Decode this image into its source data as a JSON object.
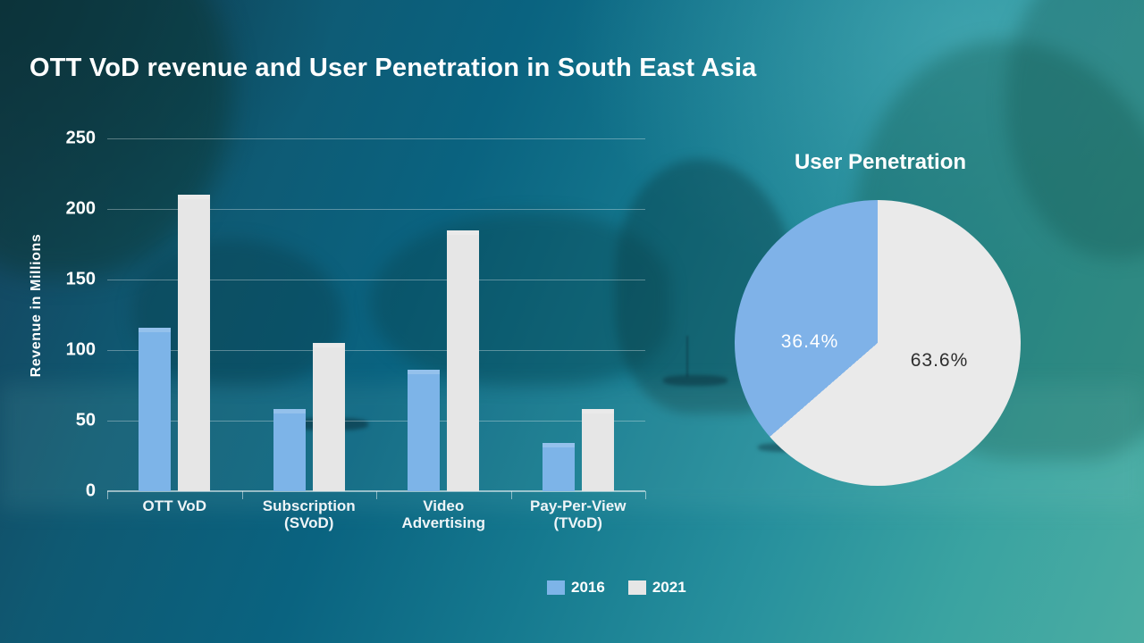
{
  "title": "OTT VoD revenue and User Penetration in South East Asia",
  "colors": {
    "text": "#ffffff",
    "series_2016": "#7db4e8",
    "series_2021": "#e6e6e6",
    "pie_blue": "#7fb2e8",
    "pie_gray": "#eaeaea",
    "pie_dark_label": "#2e2e2e",
    "background_top_left": "#16405a",
    "background_bottom_right": "#4bada2"
  },
  "legend": {
    "items": [
      {
        "label": "2016",
        "color": "#7db4e8"
      },
      {
        "label": "2021",
        "color": "#e6e6e6"
      }
    ]
  },
  "chart_data": [
    {
      "type": "bar",
      "title": "",
      "xlabel": "",
      "ylabel": "Revenue in Millions",
      "ylim": [
        0,
        250
      ],
      "yticks": [
        250,
        200,
        150,
        100,
        50,
        0
      ],
      "grid": true,
      "legend_position": "bottom",
      "categories": [
        "OTT VoD",
        "Subscription (SVoD)",
        "Video Advertising",
        "Pay-Per-View (TVoD)"
      ],
      "category_lines": [
        [
          "OTT VoD"
        ],
        [
          "Subscription",
          "(SVoD)"
        ],
        [
          "Video",
          "Advertising"
        ],
        [
          "Pay-Per-View",
          "(TVoD)"
        ]
      ],
      "series": [
        {
          "name": "2016",
          "color": "#7db4e8",
          "values": [
            116,
            58,
            86,
            34
          ]
        },
        {
          "name": "2021",
          "color": "#e6e6e6",
          "values": [
            210,
            105,
            185,
            58
          ]
        }
      ]
    },
    {
      "type": "pie",
      "title": "User Penetration",
      "legend_position": "none",
      "start_angle_deg": 0,
      "direction": "clockwise-gray-first",
      "segments": [
        {
          "label": "36.4%",
          "value": 36.4,
          "color": "#7fb2e8"
        },
        {
          "label": "63.6%",
          "value": 63.6,
          "color": "#eaeaea"
        }
      ]
    }
  ]
}
